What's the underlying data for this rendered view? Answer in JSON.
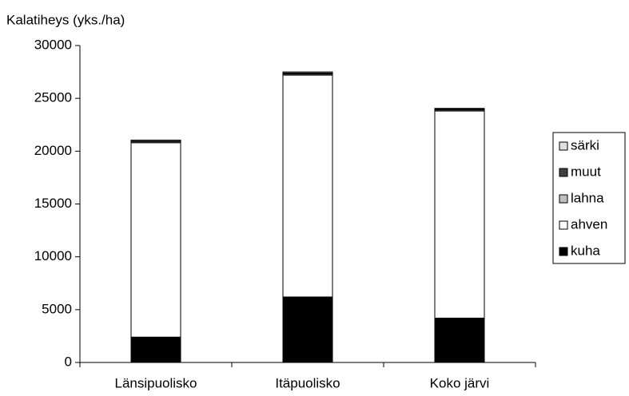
{
  "chart_data": {
    "type": "stacked_bar",
    "y_label": "Kalatiheys (yks./ha)",
    "categories": [
      "Länsipuolisko",
      "Itäpuolisko",
      "Koko järvi"
    ],
    "series": [
      {
        "name": "kuha",
        "color": "#000000",
        "values": [
          2400,
          6200,
          4200
        ]
      },
      {
        "name": "ahven",
        "color": "#ffffff",
        "values": [
          18400,
          21000,
          19600
        ]
      },
      {
        "name": "lahna",
        "color": "#c0c0c0",
        "values": [
          100,
          100,
          100
        ]
      },
      {
        "name": "muut",
        "color": "#404040",
        "values": [
          50,
          100,
          100
        ]
      },
      {
        "name": "särki",
        "color": "#e0e0e0",
        "values": [
          100,
          100,
          50
        ]
      }
    ],
    "ylim": [
      0,
      30000
    ],
    "yticks": [
      0,
      5000,
      10000,
      15000,
      20000,
      25000,
      30000
    ],
    "legend": "right"
  }
}
